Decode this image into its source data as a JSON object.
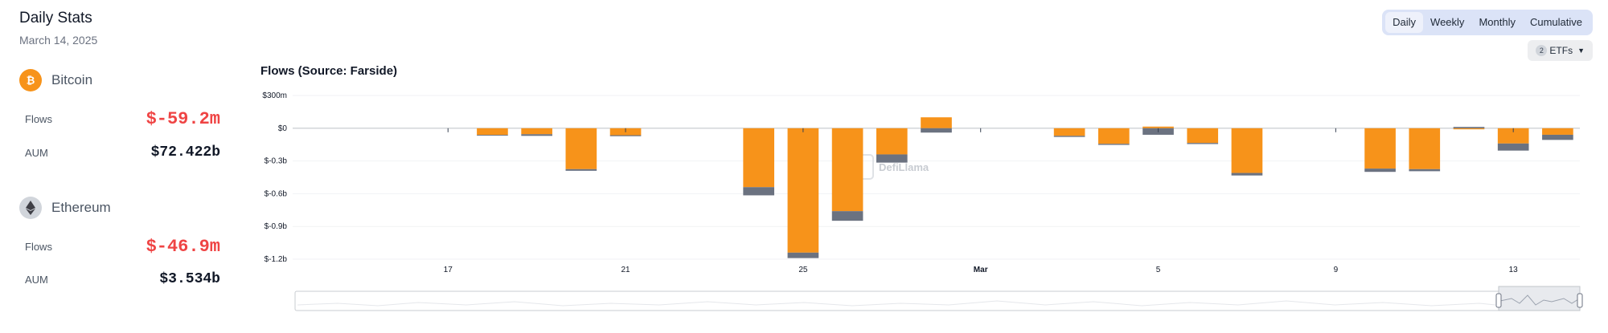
{
  "header": {
    "title": "Daily Stats",
    "date": "March 14, 2025"
  },
  "assets": [
    {
      "name": "Bitcoin",
      "icon": "bitcoin-icon",
      "icon_color": "#f7931a",
      "flows_label": "Flows",
      "flows": "$-59.2m",
      "aum_label": "AUM",
      "aum": "$72.422b"
    },
    {
      "name": "Ethereum",
      "icon": "ethereum-icon",
      "icon_color": "#d1d5db",
      "flows_label": "Flows",
      "flows": "$-46.9m",
      "aum_label": "AUM",
      "aum": "$3.534b"
    }
  ],
  "tabs": [
    "Daily",
    "Weekly",
    "Monthly",
    "Cumulative"
  ],
  "active_tab": "Daily",
  "etf_selector": {
    "count": "2",
    "label": "ETFs"
  },
  "chart_title": "Flows (Source: Farside)",
  "watermark": "DefiLlama",
  "colors": {
    "bitcoin": "#f7931a",
    "ethereum": "#6b7280",
    "negative": "#ef4444",
    "tab_bg": "#dbe3f7"
  },
  "chart_data": {
    "type": "bar",
    "stacked": true,
    "title": "Flows (Source: Farside)",
    "yticks": [
      "$300m",
      "$0",
      "$-0.3b",
      "$-0.6b",
      "$-0.9b",
      "$-1.2b"
    ],
    "ylim": [
      -1200,
      300
    ],
    "y_unit": "$m",
    "dates": [
      "2025-02-14",
      "2025-02-15",
      "2025-02-16",
      "2025-02-17",
      "2025-02-18",
      "2025-02-19",
      "2025-02-20",
      "2025-02-21",
      "2025-02-22",
      "2025-02-23",
      "2025-02-24",
      "2025-02-25",
      "2025-02-26",
      "2025-02-27",
      "2025-02-28",
      "2025-03-01",
      "2025-03-02",
      "2025-03-03",
      "2025-03-04",
      "2025-03-05",
      "2025-03-06",
      "2025-03-07",
      "2025-03-08",
      "2025-03-09",
      "2025-03-10",
      "2025-03-11",
      "2025-03-12",
      "2025-03-13",
      "2025-03-14"
    ],
    "xticks": [
      {
        "date": "2025-02-17",
        "label": "17"
      },
      {
        "date": "2025-02-21",
        "label": "21"
      },
      {
        "date": "2025-02-25",
        "label": "25"
      },
      {
        "date": "2025-03-01",
        "label": "Mar"
      },
      {
        "date": "2025-03-05",
        "label": "5"
      },
      {
        "date": "2025-03-09",
        "label": "9"
      },
      {
        "date": "2025-03-13",
        "label": "13"
      }
    ],
    "series": [
      {
        "name": "Bitcoin",
        "color": "#f7931a",
        "values": [
          0,
          0,
          0,
          0,
          -61,
          -55,
          -375,
          -64,
          0,
          0,
          -540,
          -1140,
          -760,
          -240,
          100,
          0,
          0,
          -70,
          -143,
          15,
          -135,
          -410,
          0,
          0,
          -370,
          -375,
          -10,
          -140,
          -60
        ]
      },
      {
        "name": "Ethereum",
        "color": "#6b7280",
        "values": [
          0,
          0,
          0,
          0,
          -5,
          -15,
          -15,
          -9,
          0,
          0,
          -75,
          -50,
          -88,
          -75,
          -40,
          0,
          0,
          -10,
          -10,
          -60,
          -10,
          -23,
          0,
          0,
          -30,
          -19,
          12,
          -65,
          -47
        ]
      }
    ]
  }
}
